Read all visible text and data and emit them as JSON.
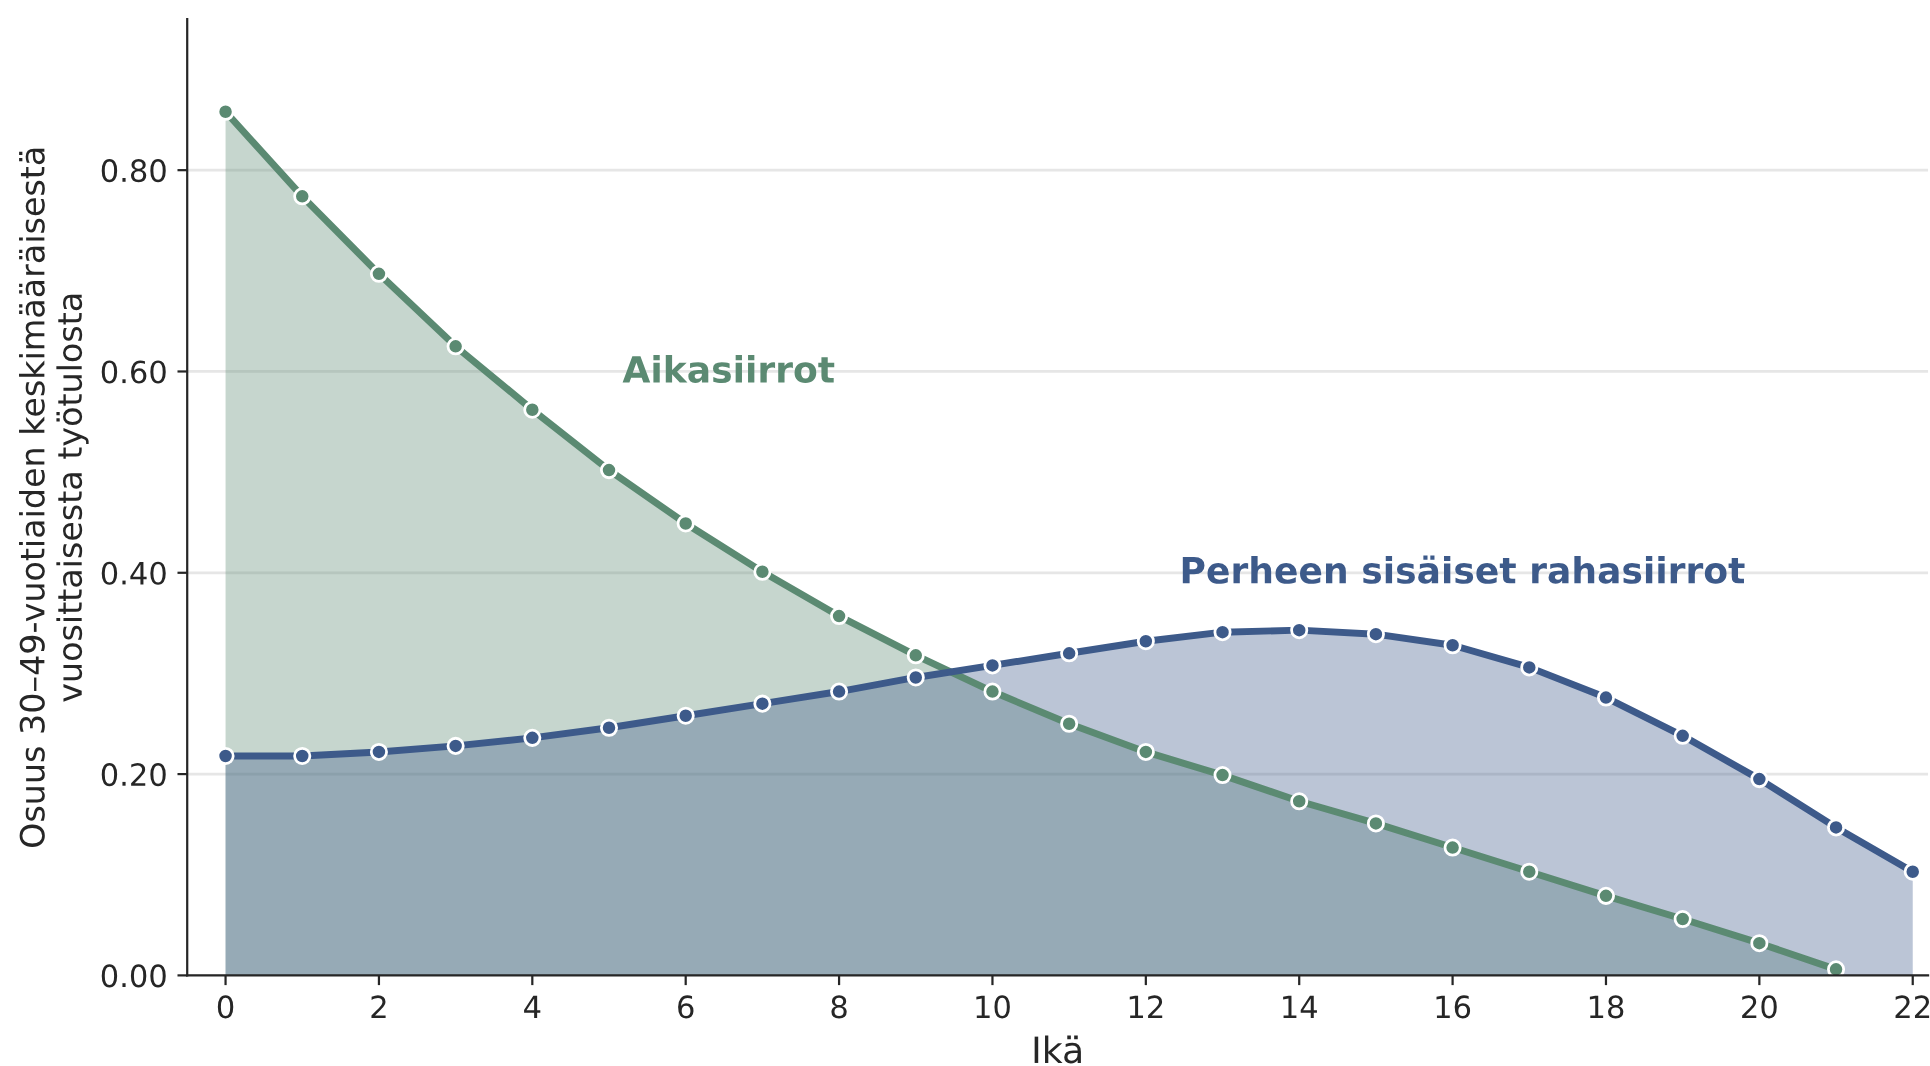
{
  "chart_data": {
    "type": "area",
    "xlabel": "Ikä",
    "ylabel": "Osuus 30–49-vuotiaiden keskimääräisestä\nvuosittaisesta työtulosta",
    "x": [
      0,
      1,
      2,
      3,
      4,
      5,
      6,
      7,
      8,
      9,
      10,
      11,
      12,
      13,
      14,
      15,
      16,
      17,
      18,
      19,
      20,
      21,
      22
    ],
    "series": [
      {
        "name": "Aikasiirrot",
        "color": "#5b8a72",
        "values": [
          0.858,
          0.774,
          0.697,
          0.625,
          0.562,
          0.502,
          0.449,
          0.401,
          0.357,
          0.318,
          0.282,
          0.25,
          0.222,
          0.199,
          0.173,
          0.151,
          0.127,
          0.103,
          0.079,
          0.056,
          0.032,
          0.006,
          null
        ]
      },
      {
        "name": "Perheen sisäiset rahasiirrot",
        "color": "#3d5a8a",
        "values": [
          0.218,
          0.218,
          0.222,
          0.228,
          0.236,
          0.246,
          0.258,
          0.27,
          0.282,
          0.296,
          0.308,
          0.32,
          0.332,
          0.341,
          0.343,
          0.339,
          0.328,
          0.306,
          0.276,
          0.238,
          0.195,
          0.147,
          0.103
        ]
      }
    ],
    "xlim": [
      -0.5,
      22.2
    ],
    "ylim": [
      0,
      0.95
    ],
    "xticks": [
      0,
      2,
      4,
      6,
      8,
      10,
      12,
      14,
      16,
      18,
      20,
      22
    ],
    "yticks": [
      {
        "value": 0,
        "label": "0.00"
      },
      {
        "value": 0.2,
        "label": "0.20"
      },
      {
        "value": 0.4,
        "label": "0.40"
      },
      {
        "value": 0.6,
        "label": "0.60"
      },
      {
        "value": 0.8,
        "label": "0.80"
      }
    ],
    "grid": "y",
    "marker": "circle",
    "line_style": "solid",
    "legend": false
  }
}
